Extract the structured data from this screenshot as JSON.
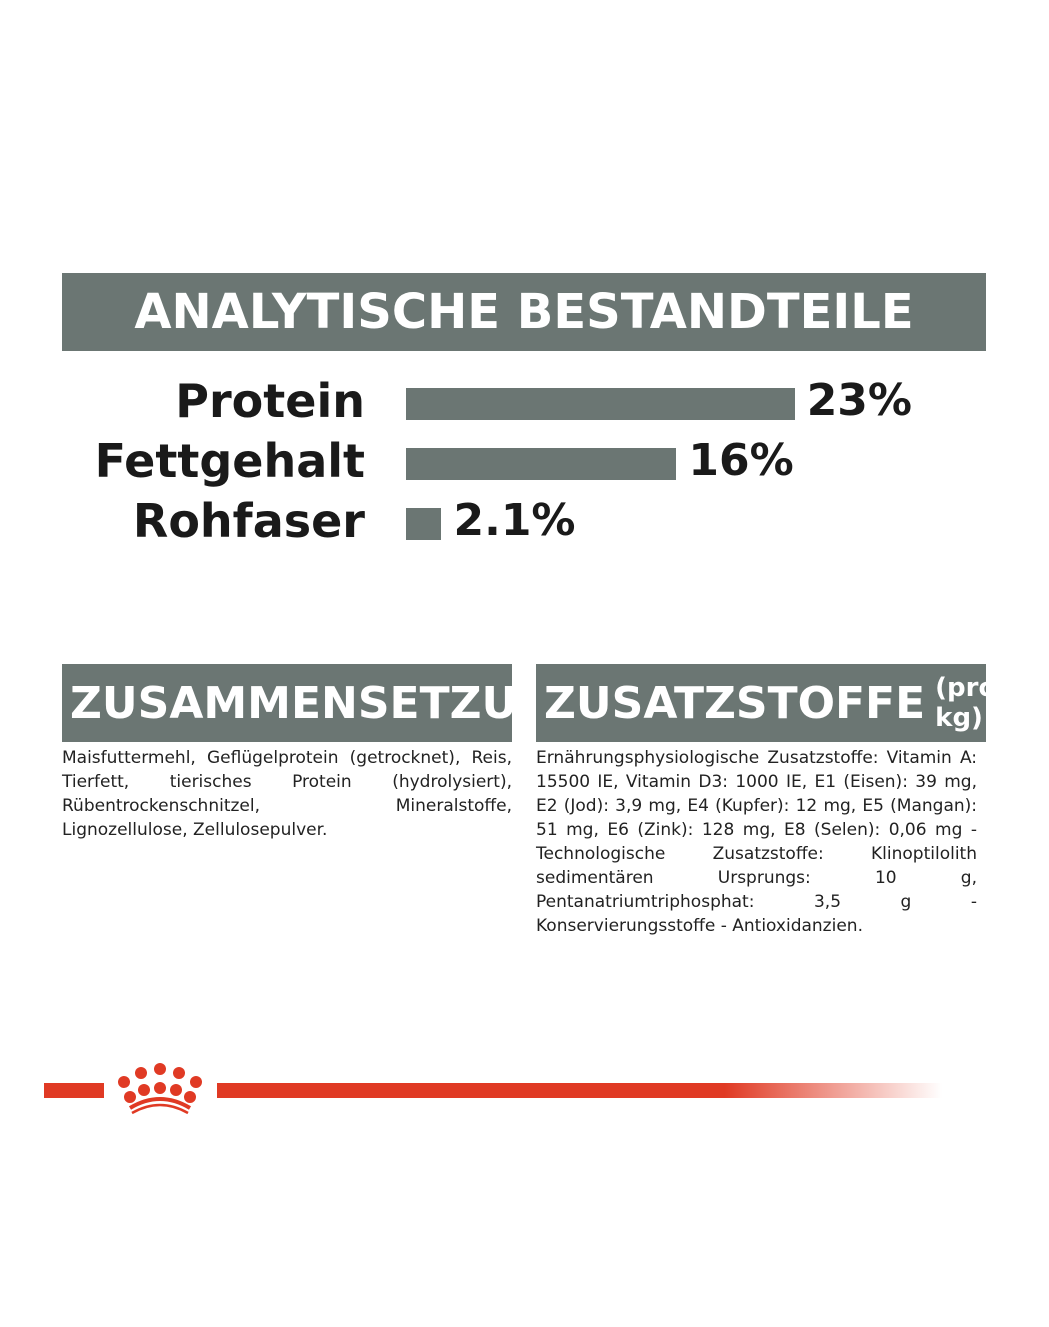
{
  "header": {
    "title": "ANALYTISCHE BESTANDTEILE"
  },
  "chart_data": {
    "type": "bar",
    "orientation": "horizontal",
    "categories": [
      "Protein",
      "Fettgehalt",
      "Rohfaser"
    ],
    "values": [
      23,
      16,
      2.1
    ],
    "value_labels": [
      "23%",
      "16%",
      "2.1%"
    ],
    "unit": "%",
    "bar_color": "#6b7673"
  },
  "composition": {
    "title": "ZUSAMMENSETZUNG",
    "text": "Maisfuttermehl, Geflügelprotein (getrocknet), Reis, Tierfett, tierisches Protein (hydrolysiert), Rübentrockenschnitzel, Mineralstoffe, Lignozellulose, Zellulosepulver."
  },
  "additives": {
    "title": "ZUSATZSTOFFE",
    "title_suffix": "(pro kg)",
    "text": "Ernährungsphysiologische Zusatzstoffe: Vitamin A: 15500 IE, Vitamin D3: 1000 IE, E1 (Eisen): 39 mg, E2 (Jod): 3,9 mg, E4 (Kupfer): 12 mg, E5 (Mangan): 51 mg, E6 (Zink): 128 mg, E8 (Selen): 0,06 mg - Technologische Zusatzstoffe: Klinoptilolith sedimentären Ursprungs: 10 g, Pentanatriumtriphosphat: 3,5 g - Konservierungsstoffe - Antioxidanzien."
  },
  "colors": {
    "gray": "#6b7673",
    "brand_red": "#e03a24"
  },
  "logo": {
    "icon": "crown-icon"
  }
}
